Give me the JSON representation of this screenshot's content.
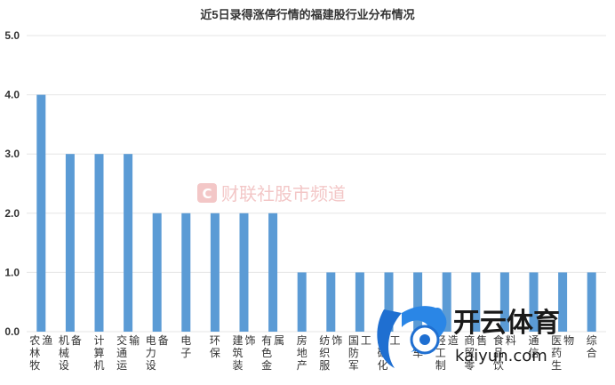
{
  "chart_data": {
    "type": "bar",
    "title": "近5日录得涨停行情的福建股行业分布情况",
    "categories": [
      "农林牧渔",
      "机械设备",
      "计算机",
      "交通运输",
      "电力设备",
      "电子",
      "环保",
      "建筑装饰",
      "有色金属",
      "房地产",
      "纺织服饰",
      "国防军工",
      "基础化工",
      "汽车",
      "轻工制造",
      "商贸零售",
      "食品饮料",
      "通信",
      "医药生物",
      "综合"
    ],
    "values": [
      4,
      3,
      3,
      3,
      2,
      2,
      2,
      2,
      2,
      1,
      1,
      1,
      1,
      1,
      1,
      1,
      1,
      1,
      1,
      1
    ],
    "yticks": [
      "0.0",
      "1.0",
      "2.0",
      "3.0",
      "4.0",
      "5.0"
    ],
    "ylim": [
      0,
      5
    ],
    "grid": true,
    "bar_color": "#5b9bd5"
  },
  "watermark": {
    "text": "财联社股市频道",
    "badge": "C"
  },
  "logo": {
    "cn": "开云体育",
    "en": "kaiyun.com"
  }
}
